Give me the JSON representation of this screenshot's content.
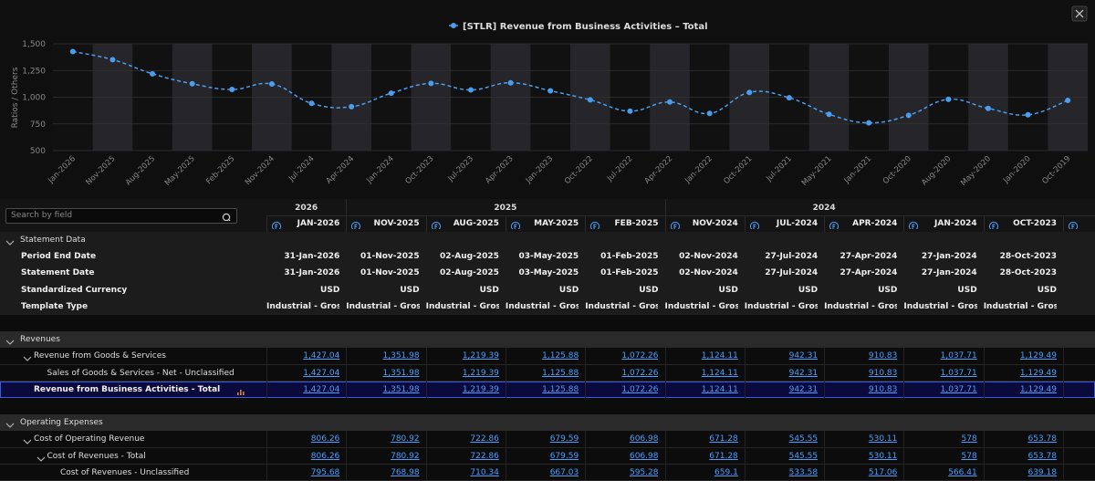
{
  "chart_data": {
    "type": "line",
    "y_label": "Ratios / Others",
    "categories": [
      "Jan-2026",
      "Nov-2025",
      "Aug-2025",
      "May-2025",
      "Feb-2025",
      "Nov-2024",
      "Jul-2024",
      "Apr-2024",
      "Jan-2024",
      "Oct-2023",
      "Jul-2023",
      "Apr-2023",
      "Jan-2023",
      "Oct-2022",
      "Jul-2022",
      "Apr-2022",
      "Jan-2022",
      "Oct-2021",
      "Jul-2021",
      "May-2021",
      "Jan-2021",
      "Oct-2020",
      "Aug-2020",
      "May-2020",
      "Jan-2020",
      "Oct-2019"
    ],
    "series": [
      {
        "name": "[STLR] Revenue from Business Activities – Total",
        "color": "#4a9ef0",
        "values": [
          1427.04,
          1351.98,
          1219.39,
          1125.88,
          1072.26,
          1124.11,
          942.31,
          910.83,
          1037.71,
          1129.49,
          1068,
          1135,
          1060,
          975,
          870,
          955,
          848,
          1045,
          995,
          840,
          760,
          830,
          980,
          895,
          835,
          970
        ]
      }
    ],
    "ylim": [
      500,
      1500
    ],
    "yticks": [
      500,
      750,
      {
        "value": 1000,
        "label": "1,000"
      },
      {
        "value": 1250,
        "label": "1,250"
      },
      {
        "value": 1500,
        "label": "1,500"
      }
    ],
    "grid": true
  },
  "table": {
    "search_placeholder": "Search by field",
    "years": [
      "2026",
      "2025",
      "2024"
    ],
    "columns": [
      "JAN-2026",
      "NOV-2025",
      "AUG-2025",
      "MAY-2025",
      "FEB-2025",
      "NOV-2024",
      "JUL-2024",
      "APR-2024",
      "JAN-2024",
      "OCT-2023"
    ],
    "sections": [
      {
        "title": "Statement Data",
        "rows": [
          {
            "label": "Period End Date",
            "values": [
              "31-Jan-2026",
              "01-Nov-2025",
              "02-Aug-2025",
              "03-May-2025",
              "01-Feb-2025",
              "02-Nov-2024",
              "27-Jul-2024",
              "27-Apr-2024",
              "27-Jan-2024",
              "28-Oct-2023"
            ]
          },
          {
            "label": "Statement Date",
            "values": [
              "31-Jan-2026",
              "01-Nov-2025",
              "02-Aug-2025",
              "03-May-2025",
              "01-Feb-2025",
              "02-Nov-2024",
              "27-Jul-2024",
              "27-Apr-2024",
              "27-Jan-2024",
              "28-Oct-2023"
            ]
          },
          {
            "label": "Standardized Currency",
            "values": [
              "USD",
              "USD",
              "USD",
              "USD",
              "USD",
              "USD",
              "USD",
              "USD",
              "USD",
              "USD"
            ]
          },
          {
            "label": "Template Type",
            "values": [
              "Industrial - Gross...",
              "Industrial - Gross...",
              "Industrial - Gross...",
              "Industrial - Gross...",
              "Industrial - Gross...",
              "Industrial - Gross...",
              "Industrial - Gross...",
              "Industrial - Gross...",
              "Industrial - Gross...",
              "Industrial - Gross..."
            ]
          }
        ]
      },
      {
        "title": "Revenues",
        "rows": [
          {
            "label": "Revenue from Goods & Services",
            "values": [
              "1,427.04",
              "1,351.98",
              "1,219.39",
              "1,125.88",
              "1,072.26",
              "1,124.11",
              "942.31",
              "910.83",
              "1,037.71",
              "1,129.49"
            ],
            "children": [
              {
                "label": "Sales of Goods & Services - Net - Unclassified",
                "values": [
                  "1,427.04",
                  "1,351.98",
                  "1,219.39",
                  "1,125.88",
                  "1,072.26",
                  "1,124.11",
                  "942.31",
                  "910.83",
                  "1,037.71",
                  "1,129.49"
                ]
              }
            ]
          },
          {
            "label": "Revenue from Business Activities - Total",
            "selected": true,
            "values": [
              "1,427.04",
              "1,351.98",
              "1,219.39",
              "1,125.88",
              "1,072.26",
              "1,124.11",
              "942.31",
              "910.83",
              "1,037.71",
              "1,129.49"
            ]
          }
        ]
      },
      {
        "title": "Operating Expenses",
        "rows": [
          {
            "label": "Cost of Operating Revenue",
            "values": [
              "806.26",
              "780.92",
              "722.86",
              "679.59",
              "606.98",
              "671.28",
              "545.55",
              "530.11",
              "578",
              "653.78"
            ],
            "children": [
              {
                "label": "Cost of Revenues - Total",
                "values": [
                  "806.26",
                  "780.92",
                  "722.86",
                  "679.59",
                  "606.98",
                  "671.28",
                  "545.55",
                  "530.11",
                  "578",
                  "653.78"
                ],
                "children": [
                  {
                    "label": "Cost of Revenues - Unclassified",
                    "values": [
                      "795.68",
                      "768.98",
                      "710.34",
                      "667.03",
                      "595.28",
                      "659.1",
                      "533.58",
                      "517.06",
                      "566.41",
                      "639.18"
                    ]
                  }
                ]
              }
            ]
          }
        ]
      }
    ]
  }
}
